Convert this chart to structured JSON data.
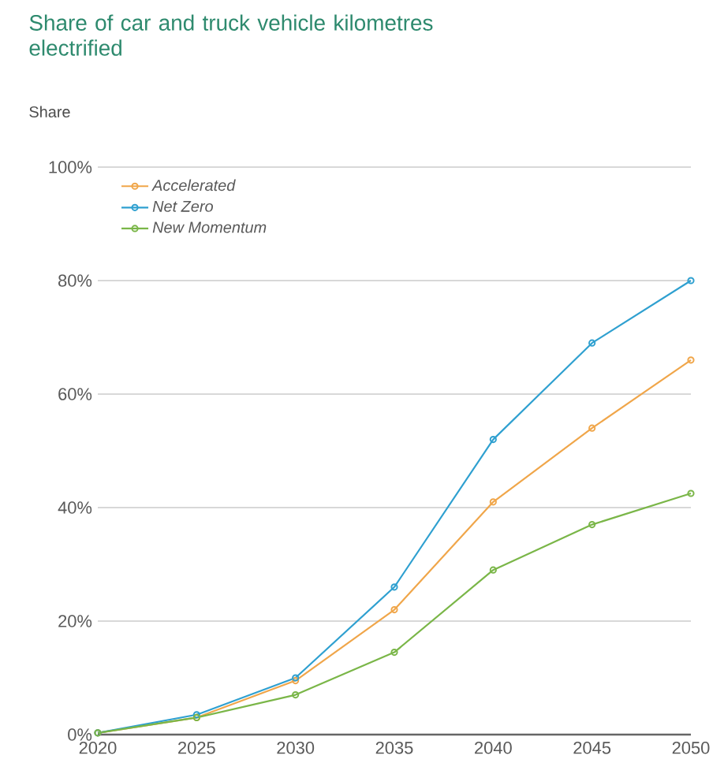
{
  "chart_data": {
    "type": "line",
    "title": "Share of car and truck vehicle kilometres electrified",
    "ylabel": "Share",
    "x": [
      2020,
      2025,
      2030,
      2035,
      2040,
      2045,
      2050
    ],
    "series": [
      {
        "name": "Accelerated",
        "color": "#f0a64a",
        "values": [
          0.3,
          3,
          9.5,
          22,
          41,
          54,
          66
        ]
      },
      {
        "name": "Net Zero",
        "color": "#2fa0d0",
        "values": [
          0.3,
          3.5,
          10,
          26,
          52,
          69,
          80
        ]
      },
      {
        "name": "New Momentum",
        "color": "#7ab648",
        "values": [
          0.3,
          3,
          7,
          14.5,
          29,
          37,
          42.5
        ]
      }
    ],
    "xlim": [
      2020,
      2050
    ],
    "xticks": [
      2020,
      2025,
      2030,
      2035,
      2040,
      2045,
      2050
    ],
    "ylim": [
      0,
      100
    ],
    "yticks": [
      {
        "value": 0,
        "label": "0%"
      },
      {
        "value": 20,
        "label": "20%"
      },
      {
        "value": 40,
        "label": "40%"
      },
      {
        "value": 60,
        "label": "60%"
      },
      {
        "value": 80,
        "label": "80%"
      },
      {
        "value": 100,
        "label": "100%"
      }
    ],
    "grid": "y",
    "legend": "top left",
    "marker": "circle",
    "line_style": "solid"
  }
}
